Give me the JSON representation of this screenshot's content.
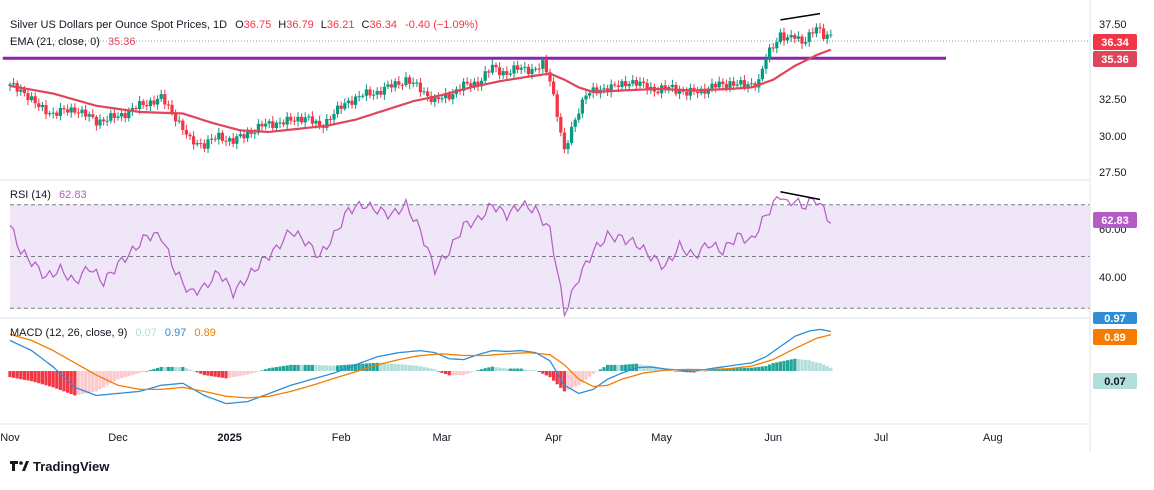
{
  "colors": {
    "up": "#089981",
    "down": "#f23645",
    "ema": "#e0455a",
    "resistance": "#8e24aa",
    "rsi": "#b45cc4",
    "rsi_band": "#efe6f7",
    "macd": "#2d8ed6",
    "signal": "#f57c00",
    "hist_up_strong": "#26a69a",
    "hist_up_weak": "#b2dfdb",
    "hist_down_strong": "#f23645",
    "hist_down_weak": "#fccbcd",
    "trendline": "#000000"
  },
  "legend": {
    "price": {
      "title": "Silver US Dollars per Ounce Spot Prices, 1D",
      "o_label": "O",
      "o": "36.75",
      "h_label": "H",
      "h": "36.79",
      "l_label": "L",
      "l": "36.21",
      "c_label": "C",
      "c": "36.34",
      "change": "-0.40 (−1.09%)"
    },
    "ema": {
      "label": "EMA (21, close, 0)",
      "value": "35.36"
    },
    "rsi": {
      "label": "RSI (14)",
      "value": "62.83"
    },
    "macd": {
      "label": "MACD (12, 26, close, 9)",
      "hist": "0.07",
      "macd": "0.97",
      "signal": "0.89"
    }
  },
  "badges": {
    "price": "36.34",
    "ema": "35.36",
    "rsi": "62.83",
    "rsi_partial": "60.00",
    "macd_partial": "0.97",
    "signal": "0.89",
    "hist": "0.07"
  },
  "brand": {
    "name": "TradingView"
  },
  "chart_data": [
    {
      "type": "candlestick",
      "title": "Silver US Dollars per Ounce Spot Prices, 1D",
      "y_ticks": [
        "37.50",
        "32.50",
        "30.00",
        "27.50"
      ],
      "ylim": [
        27.0,
        38.2
      ],
      "x_ticks": [
        "Nov",
        "Dec",
        "2025",
        "Feb",
        "Mar",
        "Apr",
        "May",
        "Jun",
        "Jul",
        "Aug"
      ],
      "x_tick_days": [
        0,
        30,
        61,
        92,
        120,
        151,
        181,
        212,
        242,
        273
      ],
      "last_day": 228,
      "axis_end_day": 300,
      "resistance_level": 34.8,
      "resistance_range_days": [
        -2,
        260
      ],
      "divergence_line": {
        "from": {
          "day": 214,
          "value": 37.3
        },
        "to": {
          "day": 225,
          "value": 37.7
        }
      },
      "close_anchors": [
        [
          0,
          33.0
        ],
        [
          4,
          32.6
        ],
        [
          8,
          31.6
        ],
        [
          12,
          31.2
        ],
        [
          18,
          31.5
        ],
        [
          24,
          30.7
        ],
        [
          30,
          31.0
        ],
        [
          36,
          31.7
        ],
        [
          42,
          32.2
        ],
        [
          46,
          31.0
        ],
        [
          50,
          29.4
        ],
        [
          54,
          29.2
        ],
        [
          58,
          29.7
        ],
        [
          62,
          29.4
        ],
        [
          66,
          29.9
        ],
        [
          70,
          30.4
        ],
        [
          74,
          30.6
        ],
        [
          78,
          30.7
        ],
        [
          82,
          31.0
        ],
        [
          86,
          30.3
        ],
        [
          90,
          31.2
        ],
        [
          94,
          32.0
        ],
        [
          98,
          32.4
        ],
        [
          102,
          32.6
        ],
        [
          106,
          33.0
        ],
        [
          110,
          33.4
        ],
        [
          114,
          32.8
        ],
        [
          118,
          32.0
        ],
        [
          122,
          32.4
        ],
        [
          126,
          33.0
        ],
        [
          130,
          33.2
        ],
        [
          134,
          34.2
        ],
        [
          138,
          33.8
        ],
        [
          142,
          34.2
        ],
        [
          146,
          34.0
        ],
        [
          148,
          34.4
        ],
        [
          150,
          33.5
        ],
        [
          152,
          31.2
        ],
        [
          154,
          28.6
        ],
        [
          156,
          30.2
        ],
        [
          158,
          31.5
        ],
        [
          160,
          32.4
        ],
        [
          164,
          32.8
        ],
        [
          168,
          32.9
        ],
        [
          172,
          33.3
        ],
        [
          176,
          33.0
        ],
        [
          180,
          32.7
        ],
        [
          184,
          32.9
        ],
        [
          188,
          32.5
        ],
        [
          192,
          32.7
        ],
        [
          196,
          33.0
        ],
        [
          200,
          33.2
        ],
        [
          204,
          33.0
        ],
        [
          208,
          33.3
        ],
        [
          210,
          34.8
        ],
        [
          212,
          35.6
        ],
        [
          214,
          36.4
        ],
        [
          216,
          36.0
        ],
        [
          218,
          36.2
        ],
        [
          220,
          35.9
        ],
        [
          222,
          36.3
        ],
        [
          224,
          36.7
        ],
        [
          226,
          36.3
        ],
        [
          228,
          36.34
        ]
      ],
      "ema_anchors": [
        [
          0,
          33.0
        ],
        [
          12,
          32.5
        ],
        [
          24,
          31.7
        ],
        [
          36,
          31.3
        ],
        [
          48,
          31.2
        ],
        [
          56,
          30.6
        ],
        [
          64,
          30.1
        ],
        [
          72,
          30.0
        ],
        [
          80,
          30.2
        ],
        [
          88,
          30.4
        ],
        [
          96,
          30.8
        ],
        [
          104,
          31.4
        ],
        [
          112,
          32.0
        ],
        [
          120,
          32.4
        ],
        [
          128,
          32.9
        ],
        [
          136,
          33.3
        ],
        [
          144,
          33.6
        ],
        [
          150,
          33.8
        ],
        [
          154,
          33.4
        ],
        [
          158,
          32.9
        ],
        [
          162,
          32.6
        ],
        [
          170,
          32.7
        ],
        [
          180,
          32.8
        ],
        [
          190,
          32.7
        ],
        [
          200,
          32.8
        ],
        [
          206,
          32.9
        ],
        [
          212,
          33.4
        ],
        [
          218,
          34.3
        ],
        [
          224,
          35.0
        ],
        [
          228,
          35.36
        ]
      ]
    },
    {
      "type": "line",
      "title": "RSI (14)",
      "y_ticks": [
        "60.00",
        "40.00"
      ],
      "band": [
        30,
        70
      ],
      "midline": 50,
      "ylim": [
        27,
        78
      ],
      "divergence_line": {
        "from": {
          "day": 214,
          "value": 75
        },
        "to": {
          "day": 225,
          "value": 72
        }
      },
      "rsi_anchors": [
        [
          0,
          62
        ],
        [
          3,
          52
        ],
        [
          6,
          48
        ],
        [
          10,
          42
        ],
        [
          14,
          45
        ],
        [
          18,
          40
        ],
        [
          22,
          46
        ],
        [
          26,
          40
        ],
        [
          30,
          47
        ],
        [
          34,
          52
        ],
        [
          38,
          58
        ],
        [
          42,
          58
        ],
        [
          46,
          44
        ],
        [
          50,
          36
        ],
        [
          54,
          38
        ],
        [
          58,
          44
        ],
        [
          62,
          36
        ],
        [
          66,
          42
        ],
        [
          70,
          48
        ],
        [
          74,
          53
        ],
        [
          78,
          60
        ],
        [
          82,
          56
        ],
        [
          86,
          50
        ],
        [
          90,
          58
        ],
        [
          94,
          68
        ],
        [
          98,
          70
        ],
        [
          102,
          68
        ],
        [
          106,
          66
        ],
        [
          110,
          70
        ],
        [
          114,
          60
        ],
        [
          118,
          45
        ],
        [
          122,
          52
        ],
        [
          126,
          62
        ],
        [
          130,
          64
        ],
        [
          134,
          70
        ],
        [
          138,
          66
        ],
        [
          142,
          70
        ],
        [
          146,
          68
        ],
        [
          150,
          60
        ],
        [
          152,
          45
        ],
        [
          154,
          28
        ],
        [
          156,
          35
        ],
        [
          158,
          42
        ],
        [
          162,
          52
        ],
        [
          166,
          58
        ],
        [
          170,
          57
        ],
        [
          174,
          55
        ],
        [
          178,
          50
        ],
        [
          182,
          46
        ],
        [
          186,
          54
        ],
        [
          190,
          50
        ],
        [
          194,
          55
        ],
        [
          198,
          52
        ],
        [
          202,
          58
        ],
        [
          206,
          56
        ],
        [
          210,
          66
        ],
        [
          212,
          70
        ],
        [
          214,
          74
        ],
        [
          216,
          70
        ],
        [
          218,
          72
        ],
        [
          220,
          69
        ],
        [
          222,
          71
        ],
        [
          224,
          72
        ],
        [
          226,
          68
        ],
        [
          228,
          62.83
        ]
      ]
    },
    {
      "type": "line",
      "title": "MACD (12, 26, close, 9)",
      "ylim": [
        -1.25,
        1.25
      ],
      "macd_anchors": [
        [
          0,
          0.75
        ],
        [
          6,
          0.5
        ],
        [
          12,
          0.1
        ],
        [
          18,
          -0.4
        ],
        [
          24,
          -0.6
        ],
        [
          30,
          -0.55
        ],
        [
          36,
          -0.5
        ],
        [
          42,
          -0.35
        ],
        [
          48,
          -0.3
        ],
        [
          54,
          -0.6
        ],
        [
          60,
          -0.8
        ],
        [
          66,
          -0.75
        ],
        [
          72,
          -0.55
        ],
        [
          78,
          -0.35
        ],
        [
          84,
          -0.2
        ],
        [
          90,
          -0.05
        ],
        [
          96,
          0.15
        ],
        [
          102,
          0.35
        ],
        [
          108,
          0.45
        ],
        [
          114,
          0.5
        ],
        [
          118,
          0.45
        ],
        [
          122,
          0.3
        ],
        [
          126,
          0.28
        ],
        [
          130,
          0.4
        ],
        [
          134,
          0.5
        ],
        [
          138,
          0.48
        ],
        [
          142,
          0.5
        ],
        [
          146,
          0.45
        ],
        [
          150,
          0.25
        ],
        [
          154,
          -0.35
        ],
        [
          158,
          -0.55
        ],
        [
          162,
          -0.45
        ],
        [
          166,
          -0.2
        ],
        [
          170,
          -0.05
        ],
        [
          174,
          0.08
        ],
        [
          178,
          0.1
        ],
        [
          182,
          0.05
        ],
        [
          186,
          0.02
        ],
        [
          190,
          0.0
        ],
        [
          194,
          0.05
        ],
        [
          198,
          0.1
        ],
        [
          202,
          0.15
        ],
        [
          206,
          0.2
        ],
        [
          210,
          0.35
        ],
        [
          214,
          0.6
        ],
        [
          218,
          0.85
        ],
        [
          222,
          0.98
        ],
        [
          225,
          1.02
        ],
        [
          228,
          0.97
        ]
      ],
      "signal_anchors": [
        [
          0,
          0.9
        ],
        [
          6,
          0.75
        ],
        [
          12,
          0.5
        ],
        [
          18,
          0.2
        ],
        [
          24,
          -0.1
        ],
        [
          30,
          -0.35
        ],
        [
          36,
          -0.45
        ],
        [
          42,
          -0.45
        ],
        [
          48,
          -0.4
        ],
        [
          54,
          -0.5
        ],
        [
          60,
          -0.62
        ],
        [
          66,
          -0.66
        ],
        [
          72,
          -0.62
        ],
        [
          78,
          -0.5
        ],
        [
          84,
          -0.35
        ],
        [
          90,
          -0.18
        ],
        [
          96,
          -0.02
        ],
        [
          102,
          0.15
        ],
        [
          108,
          0.28
        ],
        [
          114,
          0.38
        ],
        [
          120,
          0.42
        ],
        [
          126,
          0.38
        ],
        [
          132,
          0.38
        ],
        [
          138,
          0.42
        ],
        [
          144,
          0.45
        ],
        [
          150,
          0.4
        ],
        [
          154,
          0.15
        ],
        [
          158,
          -0.2
        ],
        [
          162,
          -0.38
        ],
        [
          166,
          -0.35
        ],
        [
          170,
          -0.2
        ],
        [
          176,
          -0.05
        ],
        [
          182,
          0.02
        ],
        [
          188,
          0.04
        ],
        [
          194,
          0.03
        ],
        [
          200,
          0.06
        ],
        [
          206,
          0.12
        ],
        [
          212,
          0.28
        ],
        [
          218,
          0.55
        ],
        [
          224,
          0.8
        ],
        [
          228,
          0.89
        ]
      ]
    }
  ]
}
